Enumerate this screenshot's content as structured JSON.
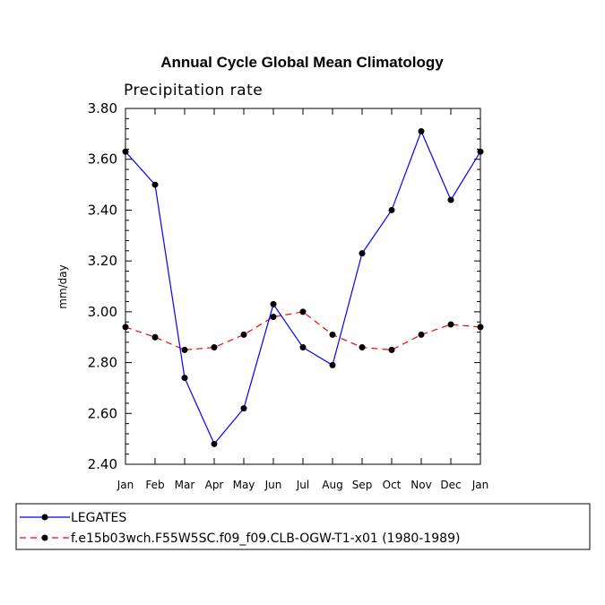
{
  "chart_data": {
    "type": "line",
    "title": "Annual Cycle Global Mean Climatology",
    "subtitle": "Precipitation rate",
    "ylabel": "mm/day",
    "xlabel": "",
    "categories": [
      "Jan",
      "Feb",
      "Mar",
      "Apr",
      "May",
      "Jun",
      "Jul",
      "Aug",
      "Sep",
      "Oct",
      "Nov",
      "Dec",
      "Jan"
    ],
    "ylim": [
      2.4,
      3.8
    ],
    "yticks": [
      "2.40",
      "2.60",
      "2.80",
      "3.00",
      "3.20",
      "3.40",
      "3.60",
      "3.80"
    ],
    "series": [
      {
        "name": "LEGATES",
        "color": "#0000ff",
        "dash": "solid",
        "values": [
          3.63,
          3.5,
          2.74,
          2.48,
          2.62,
          3.03,
          2.86,
          2.79,
          3.23,
          3.4,
          3.71,
          3.44,
          3.63
        ]
      },
      {
        "name": "f.e15b03wch.F55W5SC.f09_f09.CLB-OGW-T1-x01 (1980-1989)",
        "color": "#ff0000",
        "dash": "dashed",
        "values": [
          2.94,
          2.9,
          2.85,
          2.86,
          2.91,
          2.98,
          3.0,
          2.91,
          2.86,
          2.85,
          2.91,
          2.95,
          2.94
        ]
      }
    ],
    "legend_position": "bottom"
  }
}
